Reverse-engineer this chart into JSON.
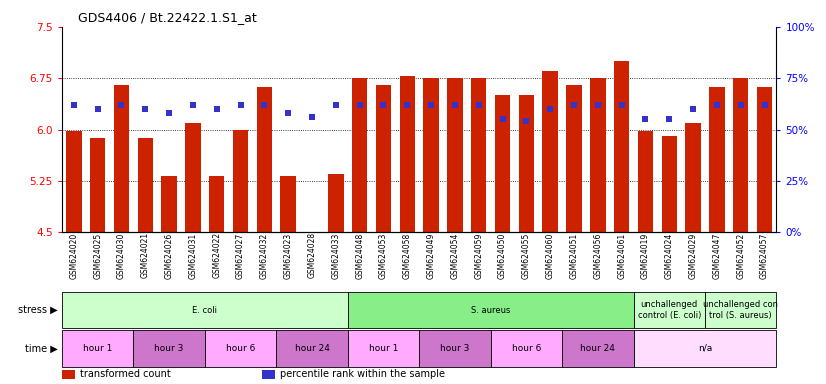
{
  "title": "GDS4406 / Bt.22422.1.S1_at",
  "samples": [
    "GSM624020",
    "GSM624025",
    "GSM624030",
    "GSM624021",
    "GSM624026",
    "GSM624031",
    "GSM624022",
    "GSM624027",
    "GSM624032",
    "GSM624023",
    "GSM624028",
    "GSM624033",
    "GSM624048",
    "GSM624053",
    "GSM624058",
    "GSM624049",
    "GSM624054",
    "GSM624059",
    "GSM624050",
    "GSM624055",
    "GSM624060",
    "GSM624051",
    "GSM624056",
    "GSM624061",
    "GSM624019",
    "GSM624024",
    "GSM624029",
    "GSM624047",
    "GSM624052",
    "GSM624057"
  ],
  "transformed_count": [
    5.98,
    5.88,
    6.65,
    5.88,
    5.32,
    6.1,
    5.32,
    6.0,
    6.62,
    5.32,
    4.18,
    5.35,
    6.75,
    6.65,
    6.79,
    6.75,
    6.75,
    6.75,
    6.5,
    6.5,
    6.85,
    6.65,
    6.75,
    7.0,
    5.98,
    5.9,
    6.1,
    6.62,
    6.75,
    6.62
  ],
  "percentile_rank": [
    62,
    60,
    62,
    60,
    58,
    62,
    60,
    62,
    62,
    58,
    56,
    62,
    62,
    62,
    62,
    62,
    62,
    62,
    55,
    54,
    60,
    62,
    62,
    62,
    55,
    55,
    60,
    62,
    62,
    62
  ],
  "bar_color": "#cc2200",
  "dot_color": "#3333cc",
  "ylim_left": [
    4.5,
    7.5
  ],
  "ylim_right": [
    0,
    100
  ],
  "yticks_left": [
    4.5,
    5.25,
    6.0,
    6.75,
    7.5
  ],
  "yticks_right": [
    0,
    25,
    50,
    75,
    100
  ],
  "grid_values": [
    5.25,
    6.0,
    6.75
  ],
  "stress_groups": [
    {
      "label": "E. coli",
      "start": 0,
      "end": 12,
      "color": "#ccffcc"
    },
    {
      "label": "S. aureus",
      "start": 12,
      "end": 24,
      "color": "#88ee88"
    },
    {
      "label": "unchallenged\ncontrol (E. coli)",
      "start": 24,
      "end": 27,
      "color": "#ccffcc"
    },
    {
      "label": "unchallenged con\ntrol (S. aureus)",
      "start": 27,
      "end": 30,
      "color": "#ccffcc"
    }
  ],
  "time_groups": [
    {
      "label": "hour 1",
      "start": 0,
      "end": 3,
      "color": "#ffaaff"
    },
    {
      "label": "hour 3",
      "start": 3,
      "end": 6,
      "color": "#cc77cc"
    },
    {
      "label": "hour 6",
      "start": 6,
      "end": 9,
      "color": "#ffaaff"
    },
    {
      "label": "hour 24",
      "start": 9,
      "end": 12,
      "color": "#cc77cc"
    },
    {
      "label": "hour 1",
      "start": 12,
      "end": 15,
      "color": "#ffaaff"
    },
    {
      "label": "hour 3",
      "start": 15,
      "end": 18,
      "color": "#cc77cc"
    },
    {
      "label": "hour 6",
      "start": 18,
      "end": 21,
      "color": "#ffaaff"
    },
    {
      "label": "hour 24",
      "start": 21,
      "end": 24,
      "color": "#cc77cc"
    },
    {
      "label": "n/a",
      "start": 24,
      "end": 30,
      "color": "#ffddff"
    }
  ],
  "legend_items": [
    {
      "label": "transformed count",
      "color": "#cc2200"
    },
    {
      "label": "percentile rank within the sample",
      "color": "#3333cc"
    }
  ]
}
